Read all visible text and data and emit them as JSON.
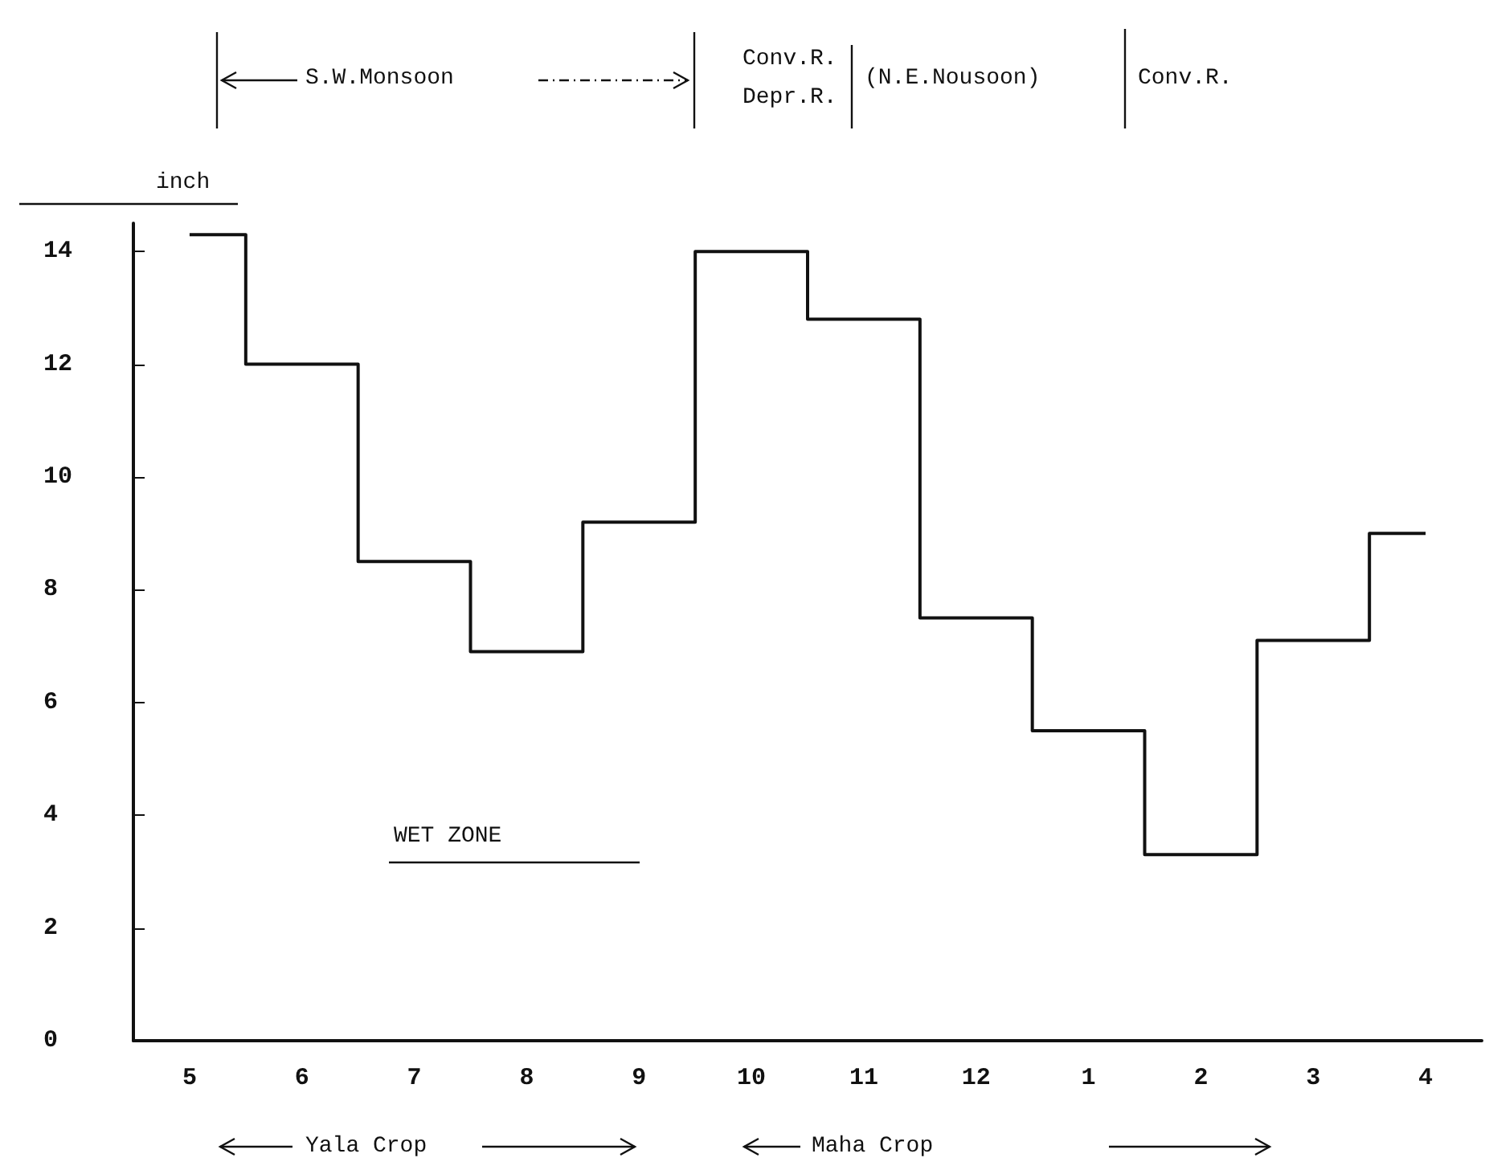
{
  "chart_data": {
    "type": "step",
    "ylabel": "inch",
    "categories": [
      "5",
      "6",
      "7",
      "8",
      "9",
      "10",
      "11",
      "12",
      "1",
      "2",
      "3",
      "4"
    ],
    "values": [
      14.3,
      12.0,
      8.5,
      6.9,
      9.2,
      14.0,
      12.8,
      7.5,
      5.5,
      3.3,
      7.1,
      9.0
    ],
    "color": "#111111",
    "ylim": [
      0,
      14.5
    ],
    "yticks": [
      0,
      2,
      4,
      6,
      8,
      10,
      12,
      14
    ],
    "annotations": [
      "S.W.Monsoon",
      "Conv.R.",
      "Depr.R.",
      "(N.E.Nousoon)",
      "Conv.R.",
      "WET ZONE",
      "Yala Crop",
      "Maha Crop"
    ]
  }
}
